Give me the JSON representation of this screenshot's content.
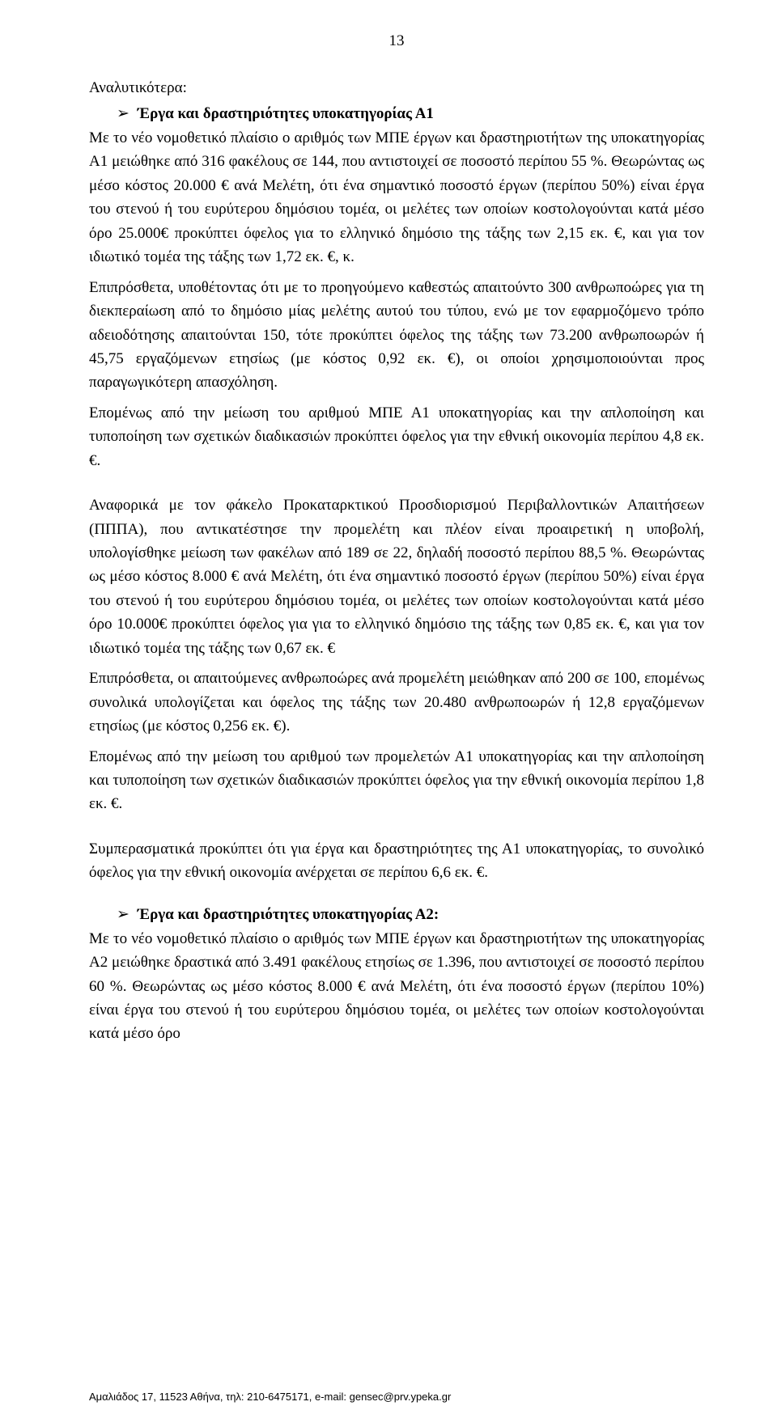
{
  "pageNumber": "13",
  "heading": "Αναλυτικότερα:",
  "bullet1": "Έργα και δραστηριότητες υποκατηγορίας Α1",
  "p1": "Με το νέο νομοθετικό πλαίσιο ο αριθμός των ΜΠΕ έργων και δραστηριοτήτων της υποκατηγορίας Α1 μειώθηκε από 316 φακέλους σε 144, που αντιστοιχεί σε ποσοστό περίπου 55 %. Θεωρώντας ως μέσο κόστος 20.000 € ανά Μελέτη, ότι ένα σημαντικό ποσοστό έργων (περίπου 50%) είναι έργα του στενού ή του ευρύτερου δημόσιου τομέα, οι μελέτες των οποίων κοστολογούνται κατά μέσο όρο 25.000€ προκύπτει όφελος για το ελληνικό δημόσιο της τάξης των 2,15 εκ. €, και για τον ιδιωτικό τομέα της τάξης των 1,72 εκ. €, κ.",
  "p2": "Επιπρόσθετα, υποθέτοντας ότι με το προηγούμενο καθεστώς απαιτούντο 300 ανθρωποώρες για τη διεκπεραίωση από το δημόσιο μίας μελέτης αυτού του τύπου, ενώ με τον εφαρμοζόμενο τρόπο αδειοδότησης απαιτούνται 150, τότε προκύπτει όφελος της τάξης των 73.200 ανθρωποωρών ή 45,75 εργαζόμενων ετησίως (με κόστος 0,92 εκ. €), οι οποίοι χρησιμοποιούνται προς παραγωγικότερη απασχόληση.",
  "p3": "Επομένως από την μείωση του αριθμού ΜΠΕ Α1 υποκατηγορίας και την απλοποίηση και τυποποίηση των σχετικών διαδικασιών προκύπτει όφελος για την εθνική οικονομία περίπου 4,8 εκ. €.",
  "p4": "Αναφορικά με τον φάκελο Προκαταρκτικού Προσδιορισμού Περιβαλλοντικών Απαιτήσεων (ΠΠΠΑ), που αντικατέστησε την προμελέτη και πλέον είναι προαιρετική η υποβολή, υπολογίσθηκε μείωση των φακέλων από 189 σε 22, δηλαδή ποσοστό περίπου 88,5 %. Θεωρώντας ως μέσο κόστος 8.000 € ανά Μελέτη, ότι ένα σημαντικό ποσοστό έργων (περίπου 50%) είναι έργα του στενού ή του ευρύτερου δημόσιου τομέα, οι μελέτες των οποίων κοστολογούνται κατά μέσο όρο 10.000€ προκύπτει όφελος για για το ελληνικό δημόσιο της τάξης των 0,85 εκ. €, και για τον ιδιωτικό τομέα της τάξης των 0,67 εκ. €",
  "p5": "Επιπρόσθετα, οι απαιτούμενες ανθρωποώρες ανά προμελέτη μειώθηκαν από 200 σε 100, επομένως συνολικά υπολογίζεται και όφελος της τάξης των 20.480 ανθρωποωρών ή 12,8 εργαζόμενων ετησίως (με κόστος 0,256 εκ. €).",
  "p6": "Επομένως από την μείωση του αριθμού των προμελετών Α1 υποκατηγορίας και την απλοποίηση και τυποποίηση των σχετικών διαδικασιών προκύπτει όφελος για την εθνική οικονομία περίπου 1,8 εκ. €.",
  "p7": "Συμπερασματικά προκύπτει ότι για έργα και δραστηριότητες της Α1 υποκατηγορίας, το συνολικό όφελος για την εθνική οικονομία ανέρχεται σε περίπου 6,6 εκ. €.",
  "bullet2": "Έργα και δραστηριότητες υποκατηγορίας Α2:",
  "p8": "Με το νέο νομοθετικό πλαίσιο ο αριθμός των ΜΠΕ έργων και δραστηριοτήτων της υποκατηγορίας Α2 μειώθηκε δραστικά από 3.491 φακέλους ετησίως σε 1.396, που αντιστοιχεί σε ποσοστό περίπου 60 %. Θεωρώντας ως μέσο κόστος 8.000 € ανά Μελέτη, ότι ένα ποσοστό έργων (περίπου 10%) είναι έργα του στενού ή του ευρύτερου δημόσιου τομέα, οι μελέτες των οποίων κοστολογούνται κατά μέσο όρο",
  "footer": "Αμαλιάδος 17, 11523 Αθήνα, τηλ: 210-6475171, e-mail: gensec@prv.ypeka.gr"
}
